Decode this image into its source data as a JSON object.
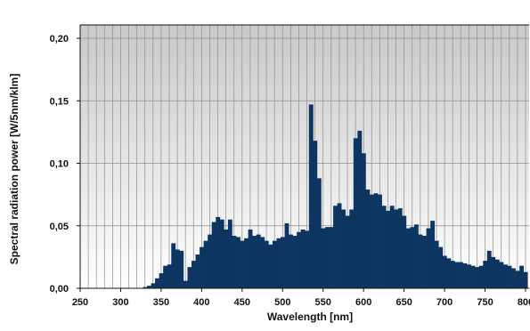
{
  "chart_data": {
    "type": "bar",
    "title": "",
    "xlabel": "Wavelength [nm]",
    "ylabel": "Spectral radiation power [W/5nm/klm]",
    "xlim": [
      250,
      800
    ],
    "ylim": [
      0,
      0.2
    ],
    "grid": true,
    "legend": "none",
    "bin_width_nm": 5,
    "x_ticks": [
      {
        "value": 250,
        "label": "250"
      },
      {
        "value": 300,
        "label": "300"
      },
      {
        "value": 350,
        "label": "350"
      },
      {
        "value": 400,
        "label": "400"
      },
      {
        "value": 450,
        "label": "450"
      },
      {
        "value": 500,
        "label": "500"
      },
      {
        "value": 550,
        "label": "550"
      },
      {
        "value": 600,
        "label": "600"
      },
      {
        "value": 650,
        "label": "650"
      },
      {
        "value": 700,
        "label": "700"
      },
      {
        "value": 750,
        "label": "750"
      },
      {
        "value": 800,
        "label": "800"
      }
    ],
    "y_ticks": [
      {
        "value": 0,
        "label": "0,00"
      },
      {
        "value": 0.05,
        "label": "0,05"
      },
      {
        "value": 0.1,
        "label": "0,10"
      },
      {
        "value": 0.15,
        "label": "0,15"
      },
      {
        "value": 0.2,
        "label": "0,20"
      }
    ],
    "x": [
      330,
      335,
      340,
      345,
      350,
      355,
      360,
      365,
      370,
      375,
      380,
      385,
      390,
      395,
      400,
      405,
      410,
      415,
      420,
      425,
      430,
      435,
      440,
      445,
      450,
      455,
      460,
      465,
      470,
      475,
      480,
      485,
      490,
      495,
      500,
      505,
      510,
      515,
      520,
      525,
      530,
      535,
      540,
      545,
      550,
      555,
      560,
      565,
      570,
      575,
      580,
      585,
      590,
      595,
      600,
      605,
      610,
      615,
      620,
      625,
      630,
      635,
      640,
      645,
      650,
      655,
      660,
      665,
      670,
      675,
      680,
      685,
      690,
      695,
      700,
      705,
      710,
      715,
      720,
      725,
      730,
      735,
      740,
      745,
      750,
      755,
      760,
      765,
      770,
      775,
      780,
      785,
      790,
      795,
      800
    ],
    "values": [
      0.001,
      0.002,
      0.004,
      0.008,
      0.012,
      0.018,
      0.019,
      0.036,
      0.031,
      0.03,
      0.006,
      0.017,
      0.022,
      0.027,
      0.033,
      0.038,
      0.043,
      0.053,
      0.057,
      0.055,
      0.047,
      0.055,
      0.042,
      0.041,
      0.038,
      0.04,
      0.047,
      0.042,
      0.043,
      0.041,
      0.038,
      0.035,
      0.038,
      0.04,
      0.041,
      0.052,
      0.043,
      0.042,
      0.045,
      0.047,
      0.046,
      0.147,
      0.118,
      0.088,
      0.048,
      0.049,
      0.049,
      0.066,
      0.068,
      0.063,
      0.058,
      0.063,
      0.12,
      0.126,
      0.108,
      0.079,
      0.075,
      0.076,
      0.075,
      0.066,
      0.062,
      0.066,
      0.063,
      0.064,
      0.058,
      0.048,
      0.049,
      0.051,
      0.043,
      0.042,
      0.048,
      0.054,
      0.038,
      0.033,
      0.026,
      0.024,
      0.022,
      0.021,
      0.021,
      0.02,
      0.019,
      0.018,
      0.017,
      0.018,
      0.022,
      0.03,
      0.025,
      0.023,
      0.021,
      0.019,
      0.018,
      0.016,
      0.014,
      0.018,
      0.013
    ]
  }
}
